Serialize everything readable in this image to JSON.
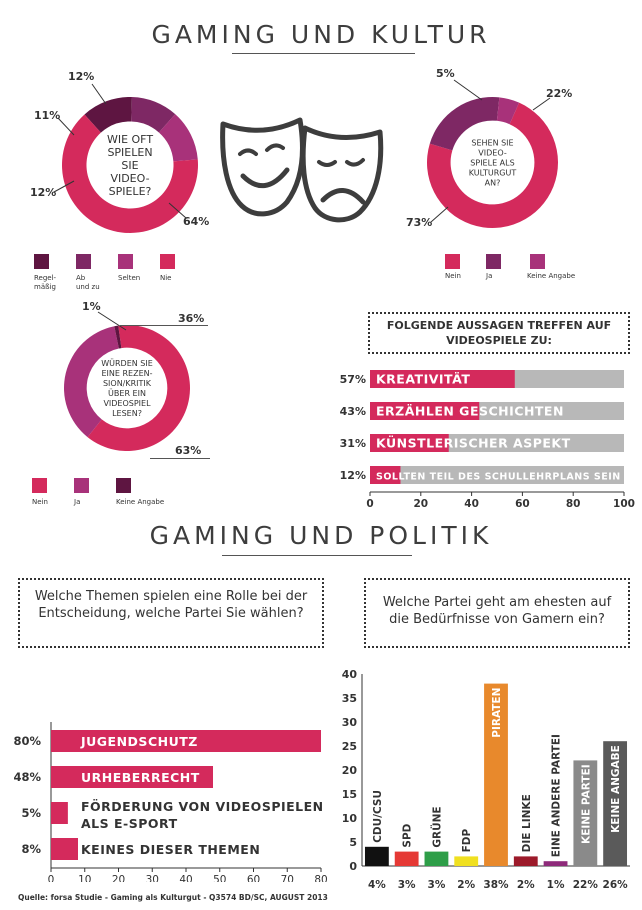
{
  "colors": {
    "magenta": "#d42a5c",
    "plum": "#a8327a",
    "darkplum": "#5e1541",
    "purple": "#7e2864",
    "gray": "#b8b8b8",
    "ink": "#3d3d3d"
  },
  "section1": {
    "title": "GAMING UND KULTUR"
  },
  "section2": {
    "title": "GAMING UND POLITIK"
  },
  "source": "Quelle: forsa Studie - Gaming als Kulturgut - Q3574 BD/SC, AUGUST 2013",
  "icons": [
    "theater-masks-icon"
  ],
  "chart_data": [
    {
      "type": "pie",
      "donut": true,
      "center_text": [
        "WIE OFT",
        "SPIELEN",
        "SIE",
        "VIDEO-",
        "SPIELE?"
      ],
      "slices": [
        {
          "label": "Regelmäßig",
          "value": 12
        },
        {
          "label": "Ab und zu",
          "value": 11
        },
        {
          "label": "Selten",
          "value": 12
        },
        {
          "label": "Nie",
          "value": 64
        }
      ],
      "labels": [
        "12%",
        "11%",
        "12%",
        "64%"
      ],
      "legend": [
        [
          "Regel-",
          "mäßig"
        ],
        [
          "Ab",
          "und zu"
        ],
        [
          "Selten"
        ],
        [
          "Nie"
        ]
      ]
    },
    {
      "type": "pie",
      "donut": true,
      "center_text": [
        "SEHEN SIE",
        "VIDEO-",
        "SPIELE ALS",
        "KULTURGUT",
        "AN?"
      ],
      "slices": [
        {
          "label": "Nein",
          "value": 73
        },
        {
          "label": "Ja",
          "value": 22
        },
        {
          "label": "Keine Angabe",
          "value": 5
        }
      ],
      "labels": [
        "73%",
        "22%",
        "5%"
      ],
      "legend": [
        "Nein",
        "Ja",
        "Keine Angabe"
      ]
    },
    {
      "type": "pie",
      "donut": true,
      "center_text": [
        "WÜRDEN SIE",
        "EINE REZEN-",
        "SION/KRITIK",
        "ÜBER EIN",
        "VIDEOSPIEL",
        "LESEN?"
      ],
      "slices": [
        {
          "label": "Nein",
          "value": 63
        },
        {
          "label": "Ja",
          "value": 36
        },
        {
          "label": "Keine Angabe",
          "value": 1
        }
      ],
      "labels": [
        "63%",
        "36%",
        "1%"
      ],
      "legend": [
        "Nein",
        "Ja",
        "Keine Angabe"
      ]
    },
    {
      "type": "bar",
      "orientation": "horizontal",
      "title": "FOLGENDE AUSSAGEN TREFFEN AUF VIDEOSPIELE ZU:",
      "categories": [
        "KREATIVITÄT",
        "ERZÄHLEN GESCHICHTEN",
        "KÜNSTLERISCHER ASPEKT",
        "SOLLTEN TEIL DES SCHULLEHRPLANS SEIN"
      ],
      "values": [
        57,
        43,
        31,
        12
      ],
      "value_labels": [
        "57%",
        "43%",
        "31%",
        "12%"
      ],
      "xlim": [
        0,
        100
      ],
      "xticks": [
        "0",
        "20",
        "40",
        "60",
        "80",
        "100"
      ]
    },
    {
      "type": "bar",
      "orientation": "horizontal",
      "title": "Welche Themen spielen eine Rolle bei der Entscheidung, welche Partei Sie wählen?",
      "categories": [
        "JUGENDSCHUTZ",
        "URHEBERRECHT",
        "FÖRDERUNG VON VIDEOSPIELEN ALS E-SPORT",
        "KEINES DIESER THEMEN"
      ],
      "values": [
        80,
        48,
        5,
        8
      ],
      "value_labels": [
        "80%",
        "48%",
        "5%",
        "8%"
      ],
      "xlim": [
        0,
        80
      ],
      "xticks": [
        "0",
        "10",
        "20",
        "30",
        "40",
        "50",
        "60",
        "70",
        "80"
      ]
    },
    {
      "type": "bar",
      "orientation": "vertical",
      "title": "Welche Partei geht am ehesten auf die Bedürfnisse von Gamern ein?",
      "categories": [
        "CDU/CSU",
        "SPD",
        "GRÜNE",
        "FDP",
        "PIRATEN",
        "DIE LINKE",
        "EINE ANDERE PARTEI",
        "KEINE PARTEI",
        "KEINE ANGABE"
      ],
      "values": [
        4,
        3,
        3,
        2,
        38,
        2,
        1,
        22,
        26
      ],
      "value_labels": [
        "4%",
        "3%",
        "3%",
        "2%",
        "38%",
        "2%",
        "1%",
        "22%",
        "26%"
      ],
      "colors": [
        "#111111",
        "#e53935",
        "#2e9e48",
        "#f0e020",
        "#e8892c",
        "#9c1a2a",
        "#8e2a7a",
        "#8a8a8a",
        "#5a5a5a"
      ],
      "ylim": [
        0,
        40
      ],
      "yticks": [
        "0",
        "5",
        "10",
        "15",
        "20",
        "25",
        "30",
        "35",
        "40"
      ]
    }
  ]
}
